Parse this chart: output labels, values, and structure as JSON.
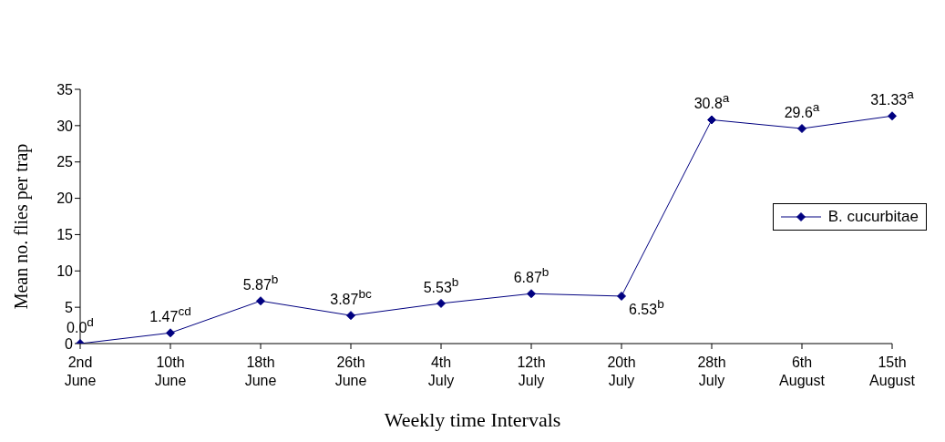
{
  "chart_data": {
    "type": "line",
    "xlabel": "Weekly time Intervals",
    "ylabel": "Mean no. flies per  trap",
    "categories": [
      "2nd June",
      "10th June",
      "18th June",
      "26th June",
      "4th July",
      "12th July",
      "20th July",
      "28th July",
      "6th August",
      "15th August"
    ],
    "series": [
      {
        "name": "B. cucurbitae",
        "color": "#000080",
        "values": [
          0,
          1.47,
          5.87,
          3.87,
          5.53,
          6.87,
          6.53,
          30.8,
          29.6,
          31.33
        ],
        "value_labels": [
          "0.0$^{d}$",
          "1.47$^{cd}$",
          "5.87$^{b}$",
          "3.87$^{bc}$",
          "5.53$^{b}$",
          "6.87$^{b}$",
          "6.53$^{b}$",
          "30.8$^{a}$",
          "29.6$^{a}$",
          "31.33$^{a}$"
        ]
      }
    ],
    "ylim": [
      0,
      35
    ],
    "yticks": [
      0,
      5,
      10,
      15,
      20,
      25,
      30,
      35
    ],
    "grid": false,
    "legend": "right",
    "marker": "diamond",
    "line_style": "solid"
  }
}
